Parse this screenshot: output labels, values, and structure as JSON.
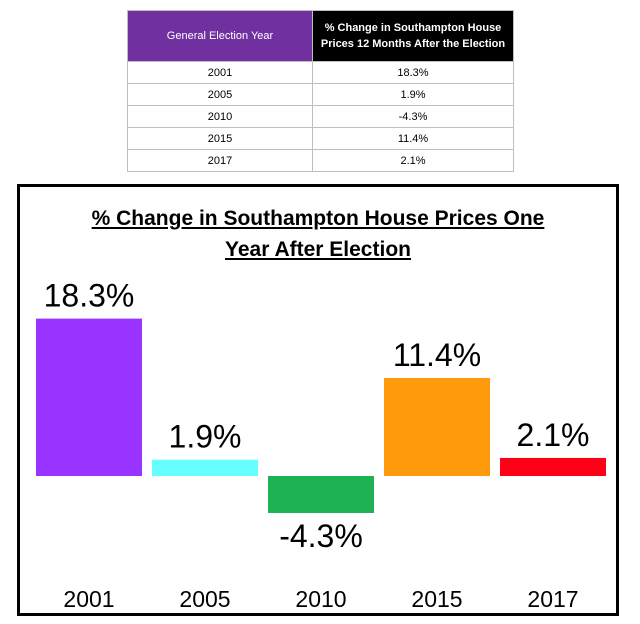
{
  "table": {
    "headers": [
      "General Election Year",
      "% Change in Southampton House Prices 12 Months After the Election"
    ],
    "rows": [
      [
        "2001",
        "18.3%"
      ],
      [
        "2005",
        "1.9%"
      ],
      [
        "2010",
        "-4.3%"
      ],
      [
        "2015",
        "11.4%"
      ],
      [
        "2017",
        "2.1%"
      ]
    ]
  },
  "chart_data": {
    "type": "bar",
    "title_line1": "% Change in Southampton House Prices One",
    "title_line2": "Year After Election",
    "categories": [
      "2001",
      "2005",
      "2010",
      "2015",
      "2017"
    ],
    "values": [
      18.3,
      1.9,
      -4.3,
      11.4,
      2.1
    ],
    "labels": [
      "18.3%",
      "1.9%",
      "-4.3%",
      "11.4%",
      "2.1%"
    ],
    "colors": [
      "#9933ff",
      "#66ffff",
      "#1fb254",
      "#ff9a0d",
      "#ff0019"
    ],
    "ylim": [
      -5,
      20
    ],
    "xlabel": "",
    "ylabel": ""
  }
}
